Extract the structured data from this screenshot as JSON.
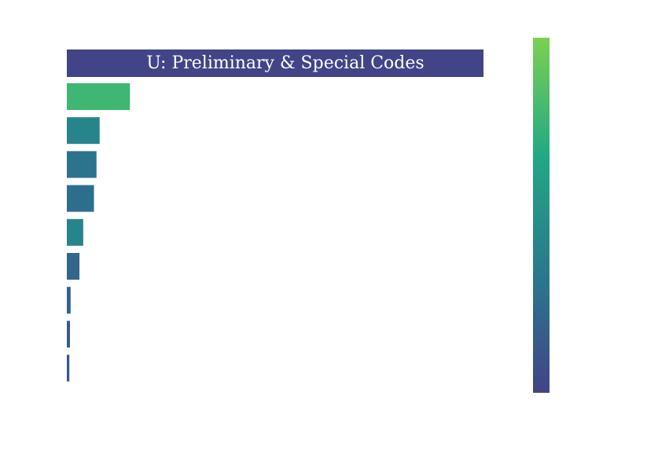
{
  "chart_data": {
    "type": "bar",
    "orientation": "horizontal",
    "values": [
      100,
      52,
      47,
      43,
      26,
      20,
      6,
      5,
      4
    ],
    "color_values": [
      0.78,
      0.42,
      0.3,
      0.27,
      0.42,
      0.22,
      0.18,
      0.15,
      0.12
    ],
    "xlim": [
      0,
      660
    ],
    "grid": false,
    "legend": "none",
    "axes_visible": false,
    "colorscale": {
      "name": "viridis-segment",
      "stops": [
        "#414487",
        "#2a788e",
        "#22a884",
        "#7ad151"
      ],
      "orientation": "vertical",
      "position": "right"
    },
    "banner": {
      "text": "U: Preliminary & Special Codes",
      "color": "#414487",
      "text_color": "#ffffff"
    }
  }
}
